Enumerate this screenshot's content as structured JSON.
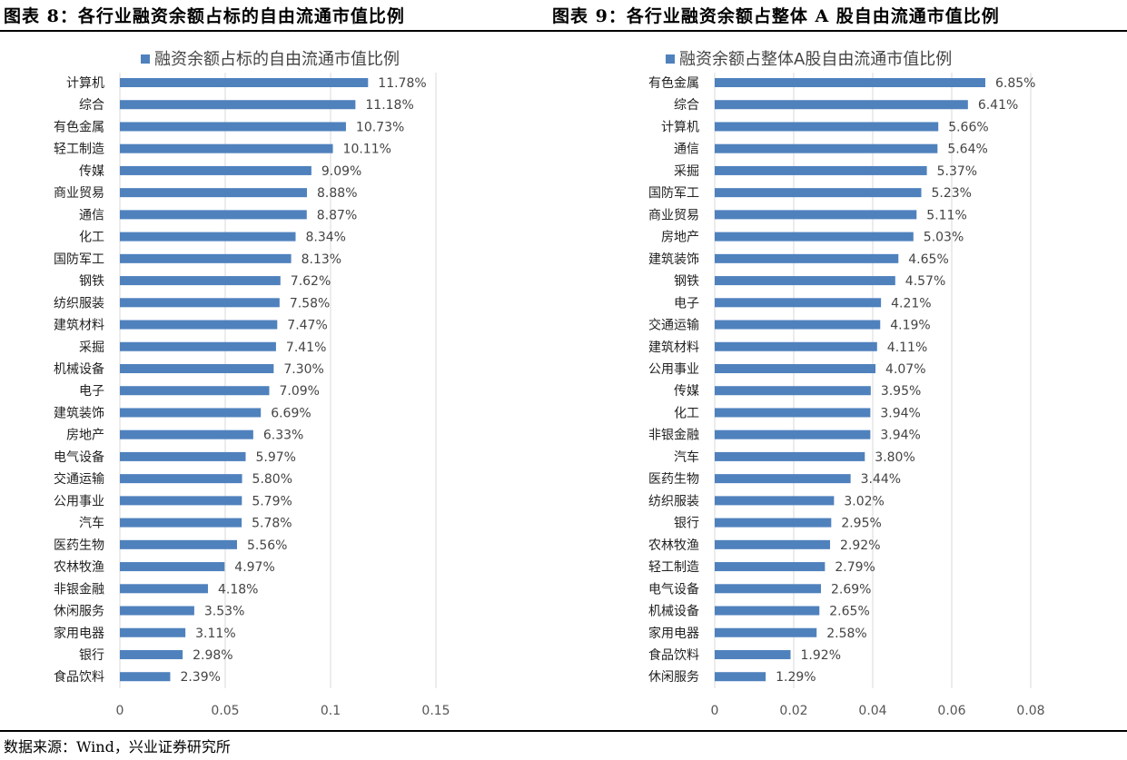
{
  "figure_titles": {
    "left": "图表 8：各行业融资余额占标的自由流通市值比例",
    "right": "图表 9：各行业融资余额占整体 A 股自由流通市值比例"
  },
  "source": "数据来源：Wind，兴业证券研究所",
  "colors": {
    "bar": "#4f81bd",
    "grid": "#d9d9d9"
  },
  "chart_data": [
    {
      "type": "bar",
      "orientation": "horizontal",
      "legend": "融资余额占标的自由流通市值比例",
      "legend_position": "top",
      "grid": true,
      "xlim": [
        0,
        0.15
      ],
      "xticks": [
        0,
        0.05,
        0.1,
        0.15
      ],
      "xtick_labels": [
        "0",
        "0.05",
        "0.1",
        "0.15"
      ],
      "categories": [
        "计算机",
        "综合",
        "有色金属",
        "轻工制造",
        "传媒",
        "商业贸易",
        "通信",
        "化工",
        "国防军工",
        "钢铁",
        "纺织服装",
        "建筑材料",
        "采掘",
        "机械设备",
        "电子",
        "建筑装饰",
        "房地产",
        "电气设备",
        "交通运输",
        "公用事业",
        "汽车",
        "医药生物",
        "农林牧渔",
        "非银金融",
        "休闲服务",
        "家用电器",
        "银行",
        "食品饮料"
      ],
      "values": [
        0.1178,
        0.1118,
        0.1073,
        0.1011,
        0.0909,
        0.0888,
        0.0887,
        0.0834,
        0.0813,
        0.0762,
        0.0758,
        0.0747,
        0.0741,
        0.073,
        0.0709,
        0.0669,
        0.0633,
        0.0597,
        0.058,
        0.0579,
        0.0578,
        0.0556,
        0.0497,
        0.0418,
        0.0353,
        0.0311,
        0.0298,
        0.0239
      ],
      "value_labels": [
        "11.78%",
        "11.18%",
        "10.73%",
        "10.11%",
        "9.09%",
        "8.88%",
        "8.87%",
        "8.34%",
        "8.13%",
        "7.62%",
        "7.58%",
        "7.47%",
        "7.41%",
        "7.30%",
        "7.09%",
        "6.69%",
        "6.33%",
        "5.97%",
        "5.80%",
        "5.79%",
        "5.78%",
        "5.56%",
        "4.97%",
        "4.18%",
        "3.53%",
        "3.11%",
        "2.98%",
        "2.39%"
      ]
    },
    {
      "type": "bar",
      "orientation": "horizontal",
      "legend": "融资余额占整体A股自由流通市值比例",
      "legend_position": "top",
      "grid": true,
      "xlim": [
        0,
        0.08
      ],
      "xticks": [
        0,
        0.02,
        0.04,
        0.06,
        0.08
      ],
      "xtick_labels": [
        "0",
        "0.02",
        "0.04",
        "0.06",
        "0.08"
      ],
      "categories": [
        "有色金属",
        "综合",
        "计算机",
        "通信",
        "采掘",
        "国防军工",
        "商业贸易",
        "房地产",
        "建筑装饰",
        "钢铁",
        "电子",
        "交通运输",
        "建筑材料",
        "公用事业",
        "传媒",
        "化工",
        "非银金融",
        "汽车",
        "医药生物",
        "纺织服装",
        "银行",
        "农林牧渔",
        "轻工制造",
        "电气设备",
        "机械设备",
        "家用电器",
        "食品饮料",
        "休闲服务"
      ],
      "values": [
        0.0685,
        0.0641,
        0.0566,
        0.0564,
        0.0537,
        0.0523,
        0.0511,
        0.0503,
        0.0465,
        0.0457,
        0.0421,
        0.0419,
        0.0411,
        0.0407,
        0.0395,
        0.0394,
        0.0394,
        0.038,
        0.0344,
        0.0302,
        0.0295,
        0.0292,
        0.0279,
        0.0269,
        0.0265,
        0.0258,
        0.0192,
        0.0129
      ],
      "value_labels": [
        "6.85%",
        "6.41%",
        "5.66%",
        "5.64%",
        "5.37%",
        "5.23%",
        "5.11%",
        "5.03%",
        "4.65%",
        "4.57%",
        "4.21%",
        "4.19%",
        "4.11%",
        "4.07%",
        "3.95%",
        "3.94%",
        "3.94%",
        "3.80%",
        "3.44%",
        "3.02%",
        "2.95%",
        "2.92%",
        "2.79%",
        "2.69%",
        "2.65%",
        "2.58%",
        "1.92%",
        "1.29%"
      ]
    }
  ]
}
